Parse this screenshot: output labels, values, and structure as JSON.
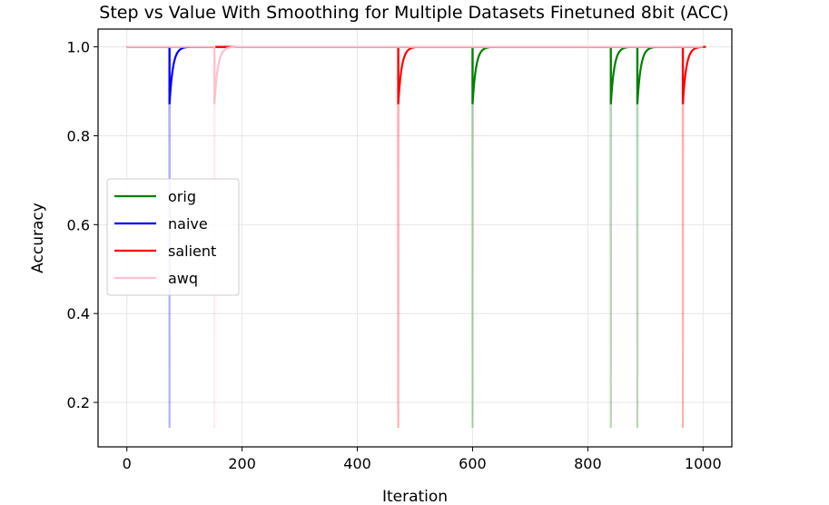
{
  "chart_data": {
    "type": "line",
    "title": "Step vs Value With Smoothing for Multiple Datasets Finetuned 8bit (ACC)",
    "xlabel": "Iteration",
    "ylabel": "Accuracy",
    "xlim": [
      -50,
      1050
    ],
    "ylim": [
      0.1,
      1.04
    ],
    "x_ticks": [
      0,
      200,
      400,
      600,
      800,
      1000
    ],
    "y_ticks": [
      0.2,
      0.4,
      0.6,
      0.8,
      1.0
    ],
    "x_tick_labels": [
      "0",
      "200",
      "400",
      "600",
      "800",
      "1000"
    ],
    "y_tick_labels": [
      "0.2",
      "0.4",
      "0.6",
      "0.8",
      "1.0"
    ],
    "grid": true,
    "legend_position": "center-left",
    "x_range": [
      0,
      1000
    ],
    "baseline": 1.0,
    "raw_dip_value": 0.143,
    "smoothed_dip_value": 0.871,
    "series": [
      {
        "name": "orig",
        "color": "#008000",
        "dips": [
          600,
          840,
          886
        ]
      },
      {
        "name": "naive",
        "color": "#0000ff",
        "dips": [
          74
        ]
      },
      {
        "name": "salient",
        "color": "#ff0000",
        "dips": [
          471,
          965
        ]
      },
      {
        "name": "awq",
        "color": "#ffc0cb",
        "dips": [
          152
        ]
      }
    ]
  }
}
